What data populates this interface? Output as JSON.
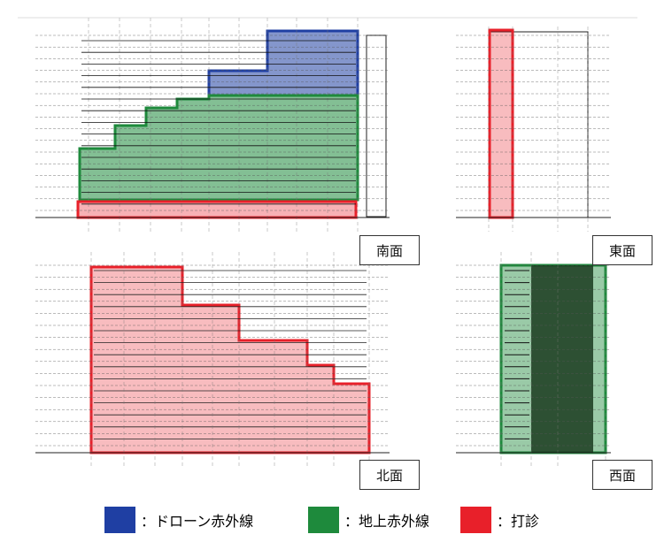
{
  "labels": {
    "south": "南面",
    "east": "東面",
    "north": "北面",
    "west": "西面"
  },
  "legend": [
    {
      "color": "#1f3fa3",
      "text": "：ドローン赤外線"
    },
    {
      "color": "#1e8a3c",
      "text": "：地上赤外線"
    },
    {
      "color": "#e8202a",
      "text": "：打診"
    }
  ],
  "colors": {
    "drone": "#1f3fa3",
    "ground": "#1e8a3c",
    "tap": "#e8202a",
    "line": "#222222"
  }
}
